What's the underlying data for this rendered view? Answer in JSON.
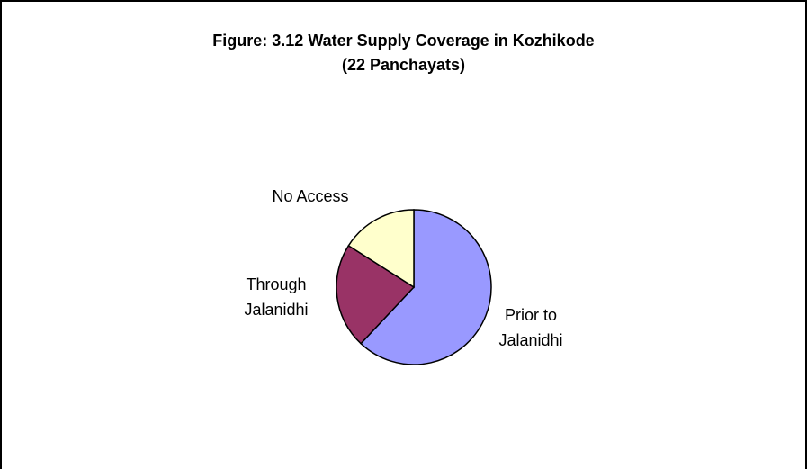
{
  "chart_data": {
    "type": "pie",
    "title": "Figure: 3.12 Water Supply Coverage in Kozhikode",
    "subtitle": "(22 Panchayats)",
    "categories": [
      "Prior to Jalanidhi",
      "Through Jalanidhi",
      "No Access"
    ],
    "values": [
      62,
      22,
      16
    ],
    "colors": [
      "#9999ff",
      "#993366",
      "#ffffcc"
    ]
  }
}
